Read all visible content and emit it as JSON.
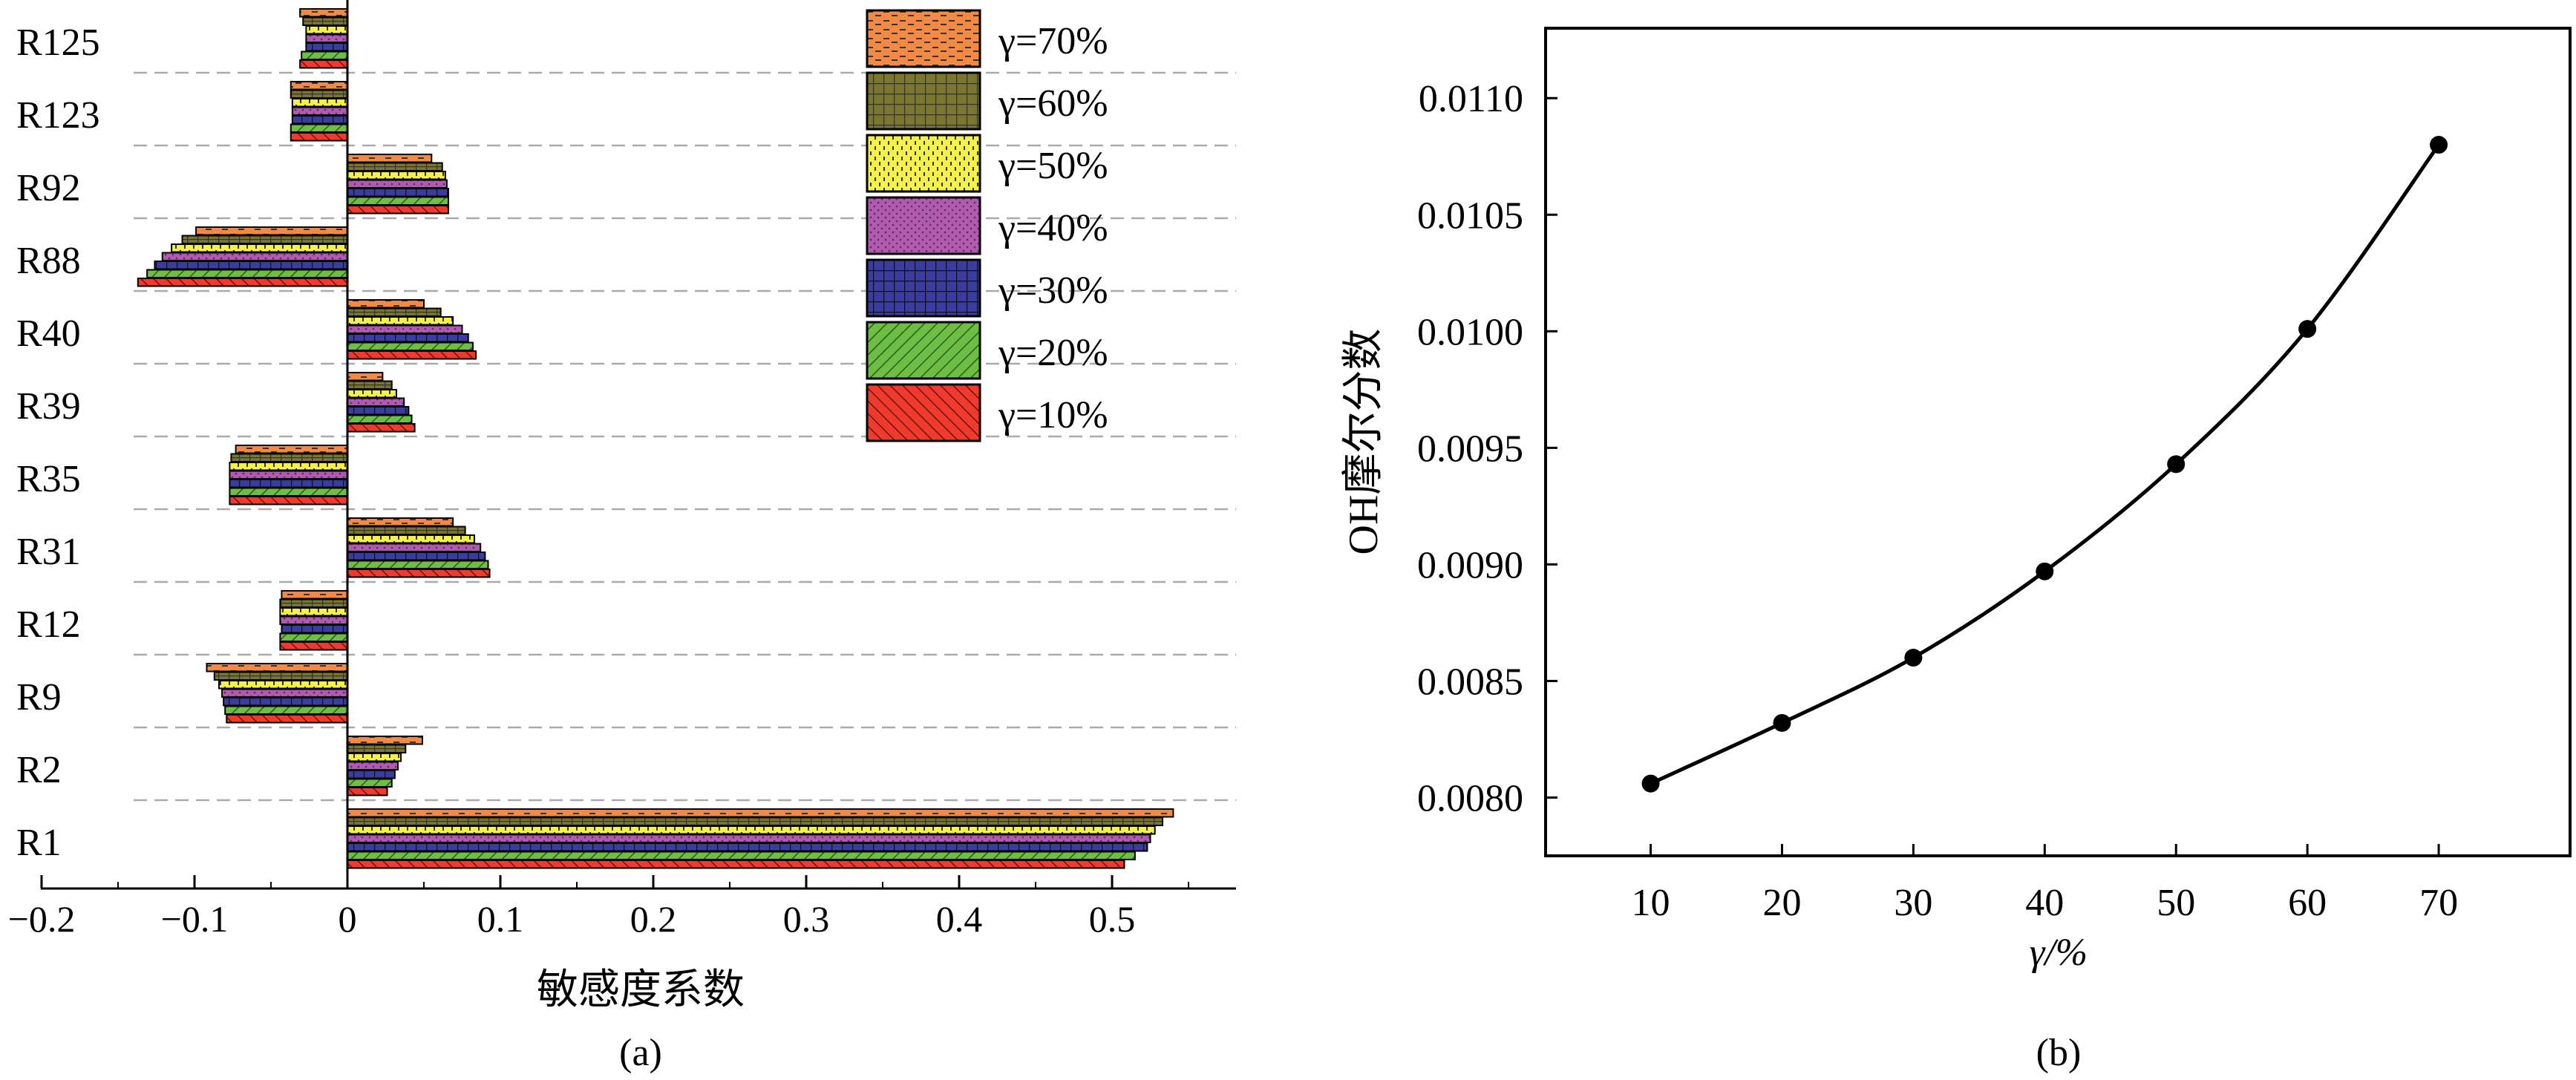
{
  "chart_data": [
    {
      "panel": "(a)",
      "type": "bar",
      "orientation": "horizontal",
      "xlabel": "敏感度系数",
      "ylabel": "",
      "xlim": [
        -0.2,
        0.58
      ],
      "xticks": [
        -0.2,
        -0.1,
        0,
        0.1,
        0.2,
        0.3,
        0.4,
        0.5
      ],
      "xtick_labels": [
        "−0.2",
        "−0.1",
        "0",
        "0.1",
        "0.2",
        "0.3",
        "0.4",
        "0.5"
      ],
      "categories": [
        "R125",
        "R123",
        "R92",
        "R88",
        "R40",
        "R39",
        "R35",
        "R31",
        "R12",
        "R9",
        "R2",
        "R1"
      ],
      "grid": "dashed separators between categories",
      "legend_position": "top-right",
      "series": [
        {
          "name": "γ=70%",
          "color": "#F28A44",
          "pattern": "dash",
          "values": [
            -0.031,
            -0.037,
            0.055,
            -0.099,
            0.05,
            0.023,
            -0.073,
            0.069,
            -0.043,
            -0.092,
            0.049,
            0.54
          ]
        },
        {
          "name": "γ=60%",
          "color": "#7A7630",
          "pattern": "grid",
          "values": [
            -0.029,
            -0.037,
            0.062,
            -0.108,
            0.061,
            0.029,
            -0.076,
            0.077,
            -0.044,
            -0.087,
            0.038,
            0.533
          ]
        },
        {
          "name": "γ=50%",
          "color": "#F4F04C",
          "pattern": "vdash",
          "values": [
            -0.027,
            -0.036,
            0.064,
            -0.115,
            0.069,
            0.032,
            -0.077,
            0.083,
            -0.044,
            -0.084,
            0.035,
            0.528
          ]
        },
        {
          "name": "γ=40%",
          "color": "#B05BB0",
          "pattern": "dots",
          "values": [
            -0.027,
            -0.036,
            0.065,
            -0.121,
            0.075,
            0.037,
            -0.077,
            0.087,
            -0.044,
            -0.082,
            0.033,
            0.525
          ]
        },
        {
          "name": "γ=30%",
          "color": "#3A3CA0",
          "pattern": "grid",
          "values": [
            -0.027,
            -0.036,
            0.066,
            -0.126,
            0.079,
            0.04,
            -0.077,
            0.09,
            -0.043,
            -0.081,
            0.031,
            0.523
          ]
        },
        {
          "name": "γ=20%",
          "color": "#6DBE45",
          "pattern": "hatch",
          "values": [
            -0.03,
            -0.037,
            0.066,
            -0.131,
            0.082,
            0.042,
            -0.077,
            0.092,
            -0.044,
            -0.08,
            0.029,
            0.515
          ]
        },
        {
          "name": "γ=10%",
          "color": "#EF3A2E",
          "pattern": "hatch",
          "values": [
            -0.031,
            -0.037,
            0.066,
            -0.137,
            0.084,
            0.044,
            -0.077,
            0.093,
            -0.044,
            -0.079,
            0.026,
            0.508
          ]
        }
      ]
    },
    {
      "panel": "(b)",
      "type": "line",
      "xlabel": "γ/%",
      "ylabel": "OH摩尔分数",
      "x": [
        10,
        20,
        30,
        40,
        50,
        60,
        70
      ],
      "y": [
        0.00806,
        0.00832,
        0.0086,
        0.00897,
        0.00943,
        0.01001,
        0.0108
      ],
      "xlim": [
        2,
        80
      ],
      "ylim": [
        0.00775,
        0.0113
      ],
      "xticks": [
        10,
        20,
        30,
        40,
        50,
        60,
        70
      ],
      "yticks": [
        0.008,
        0.0085,
        0.009,
        0.0095,
        0.01,
        0.0105,
        0.011
      ],
      "ytick_labels": [
        "0.0080",
        "0.0085",
        "0.0090",
        "0.0095",
        "0.0100",
        "0.0105",
        "0.0110"
      ],
      "line_color": "#000000",
      "marker": "filled-circle"
    }
  ]
}
